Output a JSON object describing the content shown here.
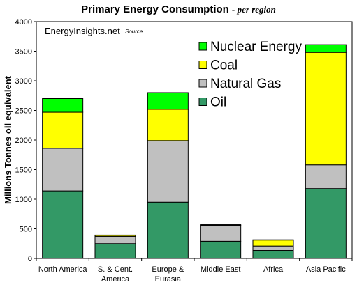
{
  "chart_data": {
    "type": "bar",
    "stacked": true,
    "title": "Primary Energy Consumption",
    "subtitle": "- per region",
    "source_label": "EnergyInsights.net",
    "source_note": "Source",
    "ylabel": "Millions Tonnes oil equivalent",
    "xlabel": "",
    "ylim": [
      0,
      4000
    ],
    "yticks": [
      "0",
      "500",
      "1000",
      "1500",
      "2000",
      "2500",
      "3000",
      "3500",
      "4000"
    ],
    "grid": false,
    "legend_position": "top-right",
    "categories": [
      [
        "North America"
      ],
      [
        "S. & Cent.",
        "America"
      ],
      [
        "Europe &",
        "Eurasia"
      ],
      [
        "Middle East"
      ],
      [
        "Africa"
      ],
      [
        "Asia Pacific"
      ]
    ],
    "series": [
      {
        "name": "Oil",
        "color": "#339966",
        "values": [
          1140,
          250,
          950,
          290,
          135,
          1180
        ]
      },
      {
        "name": "Natural Gas",
        "color": "#c0c0c0",
        "values": [
          720,
          120,
          1040,
          270,
          75,
          400
        ]
      },
      {
        "name": "Coal",
        "color": "#ffff00",
        "values": [
          610,
          20,
          530,
          10,
          100,
          1900
        ]
      },
      {
        "name": "Nuclear Energy",
        "color": "#00ff00",
        "values": [
          230,
          5,
          280,
          0,
          5,
          130
        ]
      }
    ]
  }
}
